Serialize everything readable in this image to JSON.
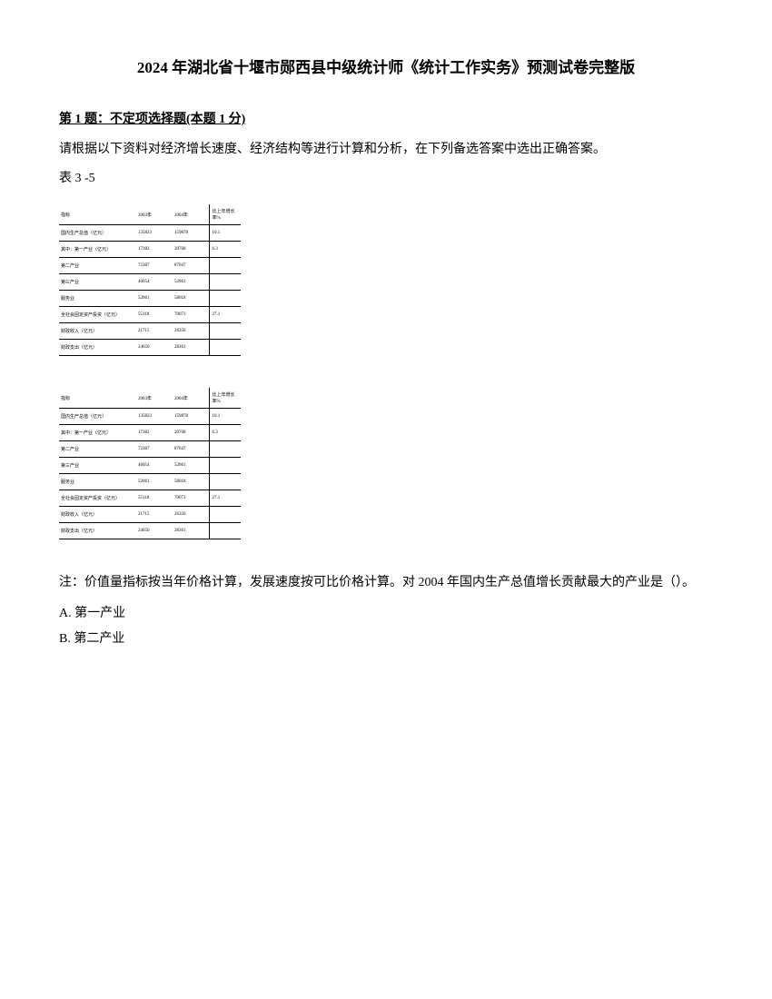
{
  "title": "2024 年湖北省十堰市郧西县中级统计师《统计工作实务》预测试卷完整版",
  "question": {
    "header": "第 1 题：不定项选择题(本题 1 分)",
    "text": "请根据以下资料对经济增长速度、经济结构等进行计算和分析，在下列备选答案中选出正确答案。",
    "tableLabel": "表 3 -5"
  },
  "table": {
    "rows": [
      {
        "col1": "指标",
        "col2": "2003年",
        "col3": "2004年",
        "col4": "比上年增长率%"
      },
      {
        "col1": "国内生产总值（亿元）",
        "col2": "135823",
        "col3": "159878",
        "col4": "10.1"
      },
      {
        "col1": "其中：第一产业（亿元）",
        "col2": "17382",
        "col3": "20768",
        "col4": "6.3"
      },
      {
        "col1": "第二产业",
        "col2": "72387",
        "col3": "87047",
        "col4": ""
      },
      {
        "col1": "第三产业",
        "col2": "46054",
        "col3": "52061",
        "col4": ""
      },
      {
        "col1": "服务业",
        "col2": "52061",
        "col3": "58018",
        "col4": ""
      },
      {
        "col1": "全社会固定资产投资（亿元）",
        "col2": "55118",
        "col3": "70073",
        "col4": "27.1"
      },
      {
        "col1": "财政收入（亿元）",
        "col2": "21715",
        "col3": "26356",
        "col4": ""
      },
      {
        "col1": "财政支出（亿元）",
        "col2": "24650",
        "col3": "28361",
        "col4": ""
      }
    ]
  },
  "note": "注：价值量指标按当年价格计算，发展速度按可比价格计算。对 2004 年国内生产总值增长贡献最大的产业是（）。",
  "options": {
    "a": "A. 第一产业",
    "b": "B. 第二产业"
  }
}
